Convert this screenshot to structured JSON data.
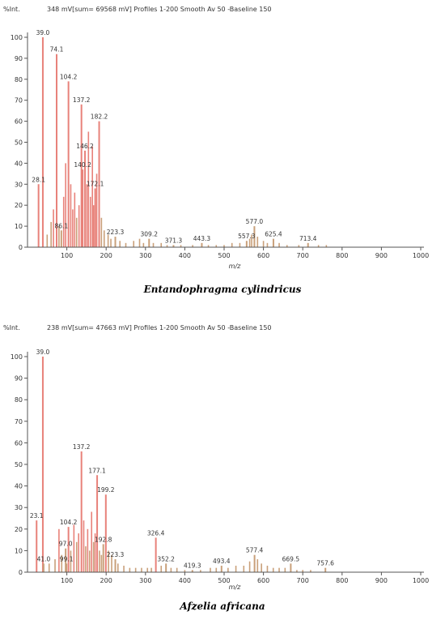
{
  "colors": {
    "major_peak": "#e8827a",
    "minor_peak": "#c9a07a",
    "axis": "#555555"
  },
  "chart_data": [
    {
      "type": "bar",
      "header": {
        "yunit": "%Int.",
        "info": "348 mV[sum= 69568 mV]  Profiles 1-200  Smooth Av 50 -Baseline 150"
      },
      "xlabel": "m/z",
      "xlim": [
        0,
        1000
      ],
      "ylim": [
        0,
        100
      ],
      "xticks": [
        100,
        200,
        300,
        400,
        500,
        600,
        700,
        800,
        900,
        1000
      ],
      "yticks": [
        0,
        10,
        20,
        30,
        40,
        50,
        60,
        70,
        80,
        90,
        100
      ],
      "caption": "Entandophragma cylindricus",
      "labeled_peaks": [
        {
          "x": 28.1,
          "y": 30,
          "label": "28.1"
        },
        {
          "x": 39.0,
          "y": 100,
          "label": "39.0"
        },
        {
          "x": 74.1,
          "y": 92,
          "label": "74.1"
        },
        {
          "x": 86.1,
          "y": 8,
          "label": "86.1"
        },
        {
          "x": 104.2,
          "y": 79,
          "label": "104.2"
        },
        {
          "x": 137.2,
          "y": 68,
          "label": "137.2"
        },
        {
          "x": 140.2,
          "y": 37,
          "label": "140.2"
        },
        {
          "x": 146.2,
          "y": 46,
          "label": "146.2"
        },
        {
          "x": 172.1,
          "y": 28,
          "label": "172.1"
        },
        {
          "x": 182.2,
          "y": 60,
          "label": "182.2"
        },
        {
          "x": 223.3,
          "y": 5,
          "label": "223.3"
        },
        {
          "x": 309.2,
          "y": 4,
          "label": "309.2"
        },
        {
          "x": 371.3,
          "y": 1,
          "label": "371.3"
        },
        {
          "x": 443.3,
          "y": 2,
          "label": "443.3"
        },
        {
          "x": 557.3,
          "y": 3,
          "label": "557.3"
        },
        {
          "x": 577.0,
          "y": 10,
          "label": "577.0"
        },
        {
          "x": 625.4,
          "y": 4,
          "label": "625.4"
        },
        {
          "x": 713.4,
          "y": 2,
          "label": "713.4"
        }
      ],
      "minor_peaks": [
        {
          "x": 50,
          "y": 6
        },
        {
          "x": 60,
          "y": 12
        },
        {
          "x": 66,
          "y": 18
        },
        {
          "x": 80,
          "y": 10
        },
        {
          "x": 92,
          "y": 24
        },
        {
          "x": 97,
          "y": 40
        },
        {
          "x": 110,
          "y": 30
        },
        {
          "x": 115,
          "y": 18
        },
        {
          "x": 120,
          "y": 26
        },
        {
          "x": 125,
          "y": 14
        },
        {
          "x": 131,
          "y": 20
        },
        {
          "x": 151,
          "y": 30
        },
        {
          "x": 155,
          "y": 55
        },
        {
          "x": 160,
          "y": 24
        },
        {
          "x": 165,
          "y": 48
        },
        {
          "x": 168,
          "y": 20
        },
        {
          "x": 176,
          "y": 35
        },
        {
          "x": 188,
          "y": 14
        },
        {
          "x": 195,
          "y": 8
        },
        {
          "x": 205,
          "y": 6
        },
        {
          "x": 212,
          "y": 4
        },
        {
          "x": 235,
          "y": 3
        },
        {
          "x": 250,
          "y": 2
        },
        {
          "x": 270,
          "y": 3
        },
        {
          "x": 285,
          "y": 4
        },
        {
          "x": 295,
          "y": 2
        },
        {
          "x": 320,
          "y": 2
        },
        {
          "x": 340,
          "y": 2
        },
        {
          "x": 355,
          "y": 1
        },
        {
          "x": 390,
          "y": 1
        },
        {
          "x": 420,
          "y": 1
        },
        {
          "x": 460,
          "y": 1
        },
        {
          "x": 480,
          "y": 1
        },
        {
          "x": 500,
          "y": 1
        },
        {
          "x": 520,
          "y": 2
        },
        {
          "x": 540,
          "y": 2
        },
        {
          "x": 565,
          "y": 4
        },
        {
          "x": 570,
          "y": 6
        },
        {
          "x": 585,
          "y": 5
        },
        {
          "x": 600,
          "y": 3
        },
        {
          "x": 610,
          "y": 2
        },
        {
          "x": 640,
          "y": 2
        },
        {
          "x": 660,
          "y": 1
        },
        {
          "x": 690,
          "y": 1
        },
        {
          "x": 740,
          "y": 1
        },
        {
          "x": 760,
          "y": 1
        }
      ]
    },
    {
      "type": "bar",
      "header": {
        "yunit": "%Int.",
        "info": "238 mV[sum= 47663 mV]  Profiles 1-200  Smooth Av 50 -Baseline 150"
      },
      "xlabel": "m/z",
      "xlim": [
        0,
        1000
      ],
      "ylim": [
        0,
        100
      ],
      "xticks": [
        100,
        200,
        300,
        400,
        500,
        600,
        700,
        800,
        900,
        1000
      ],
      "yticks": [
        0,
        10,
        20,
        30,
        40,
        50,
        60,
        70,
        80,
        90,
        100
      ],
      "caption": "Afzelia africana",
      "labeled_peaks": [
        {
          "x": 23.1,
          "y": 24,
          "label": "23.1"
        },
        {
          "x": 39.0,
          "y": 100,
          "label": "39.0"
        },
        {
          "x": 41.0,
          "y": 4,
          "label": "41.0"
        },
        {
          "x": 97.0,
          "y": 11,
          "label": "97.0"
        },
        {
          "x": 99.1,
          "y": 4,
          "label": "99.1"
        },
        {
          "x": 104.2,
          "y": 21,
          "label": "104.2"
        },
        {
          "x": 137.2,
          "y": 56,
          "label": "137.2"
        },
        {
          "x": 177.1,
          "y": 45,
          "label": "177.1"
        },
        {
          "x": 192.8,
          "y": 13,
          "label": "192.8"
        },
        {
          "x": 199.2,
          "y": 36,
          "label": "199.2"
        },
        {
          "x": 223.3,
          "y": 6,
          "label": "223.3"
        },
        {
          "x": 326.4,
          "y": 16,
          "label": "326.4"
        },
        {
          "x": 352.2,
          "y": 4,
          "label": "352.2"
        },
        {
          "x": 419.3,
          "y": 1,
          "label": "419.3"
        },
        {
          "x": 493.4,
          "y": 3,
          "label": "493.4"
        },
        {
          "x": 577.4,
          "y": 8,
          "label": "577.4"
        },
        {
          "x": 669.5,
          "y": 4,
          "label": "669.5"
        },
        {
          "x": 757.6,
          "y": 2,
          "label": "757.6"
        }
      ],
      "minor_peaks": [
        {
          "x": 55,
          "y": 4
        },
        {
          "x": 70,
          "y": 6
        },
        {
          "x": 80,
          "y": 20
        },
        {
          "x": 87,
          "y": 8
        },
        {
          "x": 110,
          "y": 10
        },
        {
          "x": 118,
          "y": 22
        },
        {
          "x": 125,
          "y": 14
        },
        {
          "x": 130,
          "y": 18
        },
        {
          "x": 143,
          "y": 24
        },
        {
          "x": 148,
          "y": 12
        },
        {
          "x": 153,
          "y": 20
        },
        {
          "x": 158,
          "y": 10
        },
        {
          "x": 163,
          "y": 28
        },
        {
          "x": 168,
          "y": 14
        },
        {
          "x": 172,
          "y": 18
        },
        {
          "x": 183,
          "y": 10
        },
        {
          "x": 188,
          "y": 8
        },
        {
          "x": 206,
          "y": 10
        },
        {
          "x": 214,
          "y": 8
        },
        {
          "x": 230,
          "y": 4
        },
        {
          "x": 245,
          "y": 3
        },
        {
          "x": 260,
          "y": 2
        },
        {
          "x": 275,
          "y": 2
        },
        {
          "x": 290,
          "y": 2
        },
        {
          "x": 305,
          "y": 2
        },
        {
          "x": 315,
          "y": 2
        },
        {
          "x": 340,
          "y": 3
        },
        {
          "x": 365,
          "y": 2
        },
        {
          "x": 380,
          "y": 2
        },
        {
          "x": 400,
          "y": 1
        },
        {
          "x": 440,
          "y": 1
        },
        {
          "x": 465,
          "y": 2
        },
        {
          "x": 480,
          "y": 2
        },
        {
          "x": 510,
          "y": 2
        },
        {
          "x": 530,
          "y": 3
        },
        {
          "x": 550,
          "y": 3
        },
        {
          "x": 565,
          "y": 5
        },
        {
          "x": 585,
          "y": 6
        },
        {
          "x": 595,
          "y": 4
        },
        {
          "x": 610,
          "y": 3
        },
        {
          "x": 625,
          "y": 2
        },
        {
          "x": 640,
          "y": 2
        },
        {
          "x": 655,
          "y": 2
        },
        {
          "x": 685,
          "y": 1
        },
        {
          "x": 700,
          "y": 1
        },
        {
          "x": 720,
          "y": 1
        }
      ]
    }
  ]
}
